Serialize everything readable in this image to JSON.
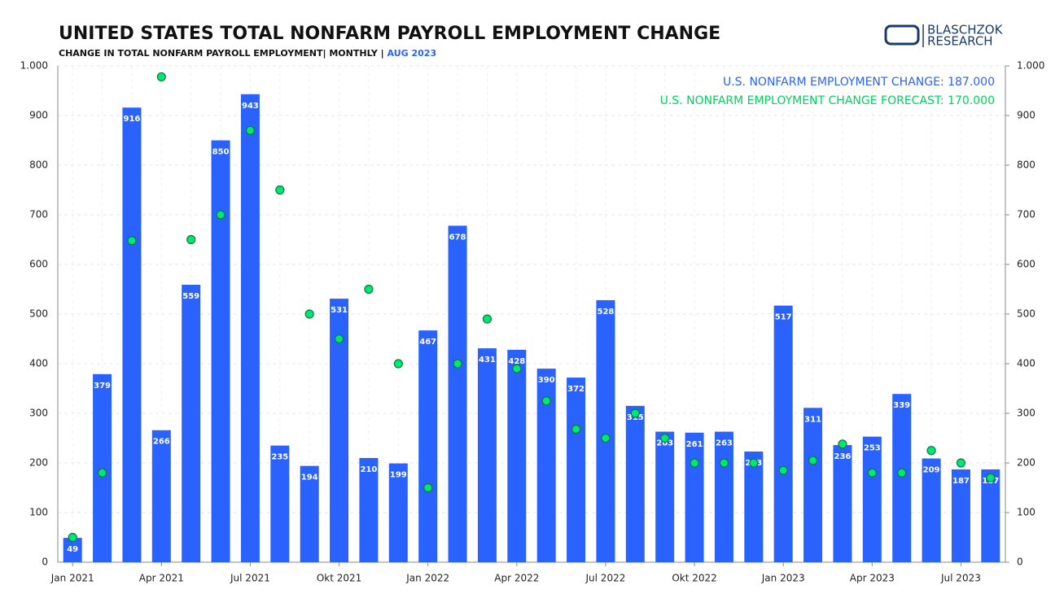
{
  "chart_data": {
    "type": "bar",
    "title": "UNITED STATES TOTAL NONFARM PAYROLL EMPLOYMENT CHANGE",
    "subtitle": "CHANGE IN TOTAL NONFARM PAYROLL EMPLOYMENT| MONTHLY | ",
    "subtitle_date": "AUG 2023",
    "logo": [
      "BLASCHZOK",
      "RESEARCH"
    ],
    "categories": [
      "Jan 2021",
      null,
      null,
      "Apr 2021",
      null,
      null,
      "Jul 2021",
      null,
      null,
      "Okt 2021",
      null,
      null,
      "Jan 2022",
      null,
      null,
      "Apr 2022",
      null,
      null,
      "Jul 2022",
      null,
      null,
      "Okt 2022",
      null,
      null,
      "Jan 2023",
      null,
      null,
      "Apr 2023",
      null,
      null,
      "Jul 2023",
      null
    ],
    "series": [
      {
        "name": "U.S. NONFARM EMPLOYMENT CHANGE: 187.000",
        "type": "bar",
        "color": "#2962ff",
        "values": [
          49,
          379,
          916,
          266,
          559,
          850,
          943,
          235,
          194,
          531,
          210,
          199,
          467,
          678,
          431,
          428,
          390,
          372,
          528,
          315,
          263,
          261,
          263,
          223,
          517,
          311,
          236,
          253,
          339,
          209,
          187,
          187
        ]
      },
      {
        "name": "U.S. NONFARM EMPLOYMENT CHANGE FORECAST: 170.000",
        "type": "scatter",
        "color": "#00e676",
        "values": [
          50,
          180,
          648,
          978,
          650,
          700,
          870,
          750,
          500,
          450,
          550,
          400,
          150,
          400,
          490,
          390,
          325,
          268,
          250,
          300,
          250,
          200,
          200,
          200,
          185,
          205,
          238,
          180,
          180,
          225,
          200,
          170
        ]
      }
    ],
    "ylim": [
      0,
      1000
    ],
    "yticks": [
      0,
      100,
      200,
      300,
      400,
      500,
      600,
      700,
      800,
      900,
      {
        "value": 1000,
        "label": "1.000"
      }
    ],
    "y2lim": [
      0,
      1000
    ],
    "y2ticks": [
      0,
      100,
      200,
      300,
      400,
      500,
      600,
      700,
      800,
      900,
      {
        "value": 1000,
        "label": "1.000"
      }
    ],
    "grid": true,
    "legend": "top-right"
  }
}
